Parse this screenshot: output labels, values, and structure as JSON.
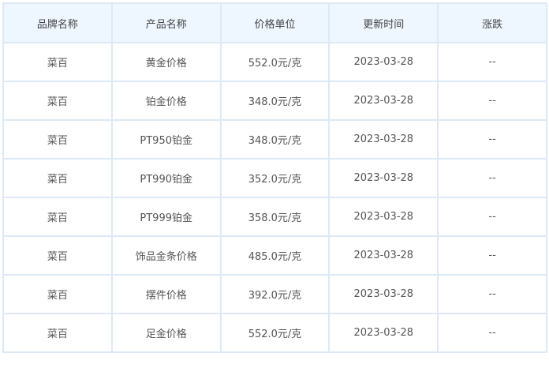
{
  "headers": [
    "品牌名称",
    "产品名称",
    "价格单位",
    "更新时间",
    "涨跌"
  ],
  "rows": [
    [
      "菜百",
      "黄金价格",
      "552.0元/克",
      "2023-03-28",
      "--"
    ],
    [
      "菜百",
      "铂金价格",
      "348.0元/克",
      "2023-03-28",
      "--"
    ],
    [
      "菜百",
      "PT950铂金",
      "348.0元/克",
      "2023-03-28",
      "--"
    ],
    [
      "菜百",
      "PT990铂金",
      "352.0元/克",
      "2023-03-28",
      "--"
    ],
    [
      "菜百",
      "PT999铂金",
      "358.0元/克",
      "2023-03-28",
      "--"
    ],
    [
      "菜百",
      "饰品金条价格",
      "485.0元/克",
      "2023-03-28",
      "--"
    ],
    [
      "菜百",
      "摆件价格",
      "392.0元/克",
      "2023-03-28",
      "--"
    ],
    [
      "菜百",
      "足金价格",
      "552.0元/克",
      "2023-03-28",
      "--"
    ]
  ]
}
